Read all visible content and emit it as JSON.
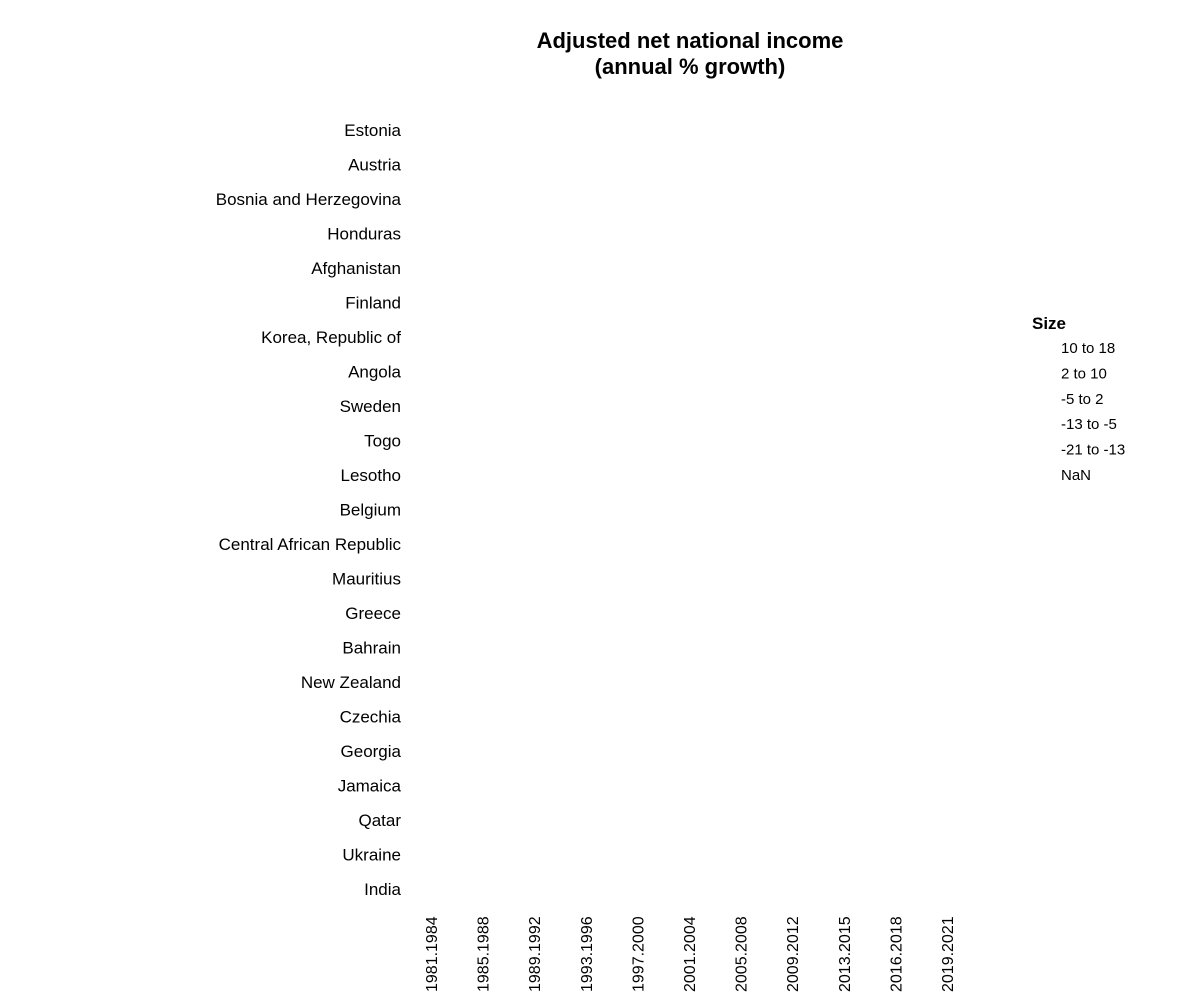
{
  "chart_data": {
    "type": "scatter",
    "title": [
      "Adjusted net national income",
      "(annual % growth)"
    ],
    "xlabel": "",
    "ylabel": "",
    "categories_y": [
      "Estonia",
      "Austria",
      "Bosnia and Herzegovina",
      "Honduras",
      "Afghanistan",
      "Finland",
      "Korea, Republic of",
      "Angola",
      "Sweden",
      "Togo",
      "Lesotho",
      "Belgium",
      "Central African Republic",
      "Mauritius",
      "Greece",
      "Bahrain",
      "New Zealand",
      "Czechia",
      "Georgia",
      "Jamaica",
      "Qatar",
      "Ukraine",
      "India"
    ],
    "categories_x": [
      "1981.1984",
      "1985.1988",
      "1989.1992",
      "1993.1996",
      "1997.2000",
      "2001.2004",
      "2005.2008",
      "2009.2012",
      "2013.2015",
      "2016.2018",
      "2019.2021"
    ],
    "points": [],
    "grid": false,
    "legend": {
      "title": "Size",
      "placement": "right",
      "items": [
        "10 to 18",
        "2 to 10",
        "-5 to 2",
        "-13 to -5",
        "-21 to -13",
        "NaN"
      ]
    }
  }
}
